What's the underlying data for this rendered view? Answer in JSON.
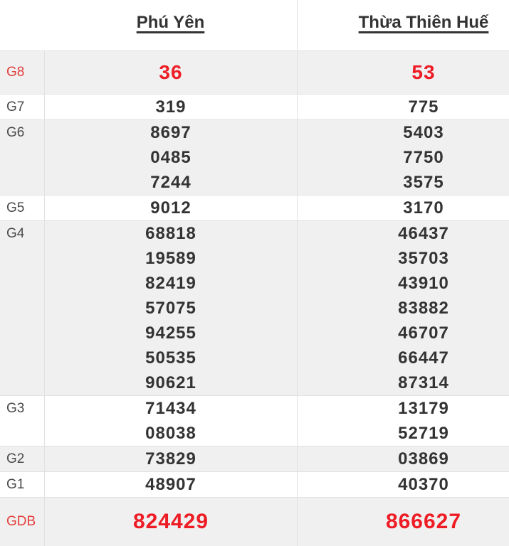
{
  "header": {
    "col1": "Phú Yên",
    "col2": "Thừa Thiên Huế"
  },
  "prizes": {
    "rows": [
      {
        "label": "G8",
        "style": "big",
        "red_label": true,
        "red_values": true,
        "values1": [
          "36"
        ],
        "values2": [
          "53"
        ]
      },
      {
        "label": "G7",
        "style": "normal",
        "red_label": false,
        "red_values": false,
        "values1": [
          "319"
        ],
        "values2": [
          "775"
        ]
      },
      {
        "label": "G6",
        "style": "normal",
        "red_label": false,
        "red_values": false,
        "values1": [
          "8697",
          "0485",
          "7244"
        ],
        "values2": [
          "5403",
          "7750",
          "3575"
        ]
      },
      {
        "label": "G5",
        "style": "normal",
        "red_label": false,
        "red_values": false,
        "values1": [
          "9012"
        ],
        "values2": [
          "3170"
        ]
      },
      {
        "label": "G4",
        "style": "normal",
        "red_label": false,
        "red_values": false,
        "values1": [
          "68818",
          "19589",
          "82419",
          "57075",
          "94255",
          "50535",
          "90621"
        ],
        "values2": [
          "46437",
          "35703",
          "43910",
          "83882",
          "46707",
          "66447",
          "87314"
        ]
      },
      {
        "label": "G3",
        "style": "normal",
        "red_label": false,
        "red_values": false,
        "values1": [
          "71434",
          "08038"
        ],
        "values2": [
          "13179",
          "52719"
        ]
      },
      {
        "label": "G2",
        "style": "normal",
        "red_label": false,
        "red_values": false,
        "values1": [
          "73829"
        ],
        "values2": [
          "03869"
        ]
      },
      {
        "label": "G1",
        "style": "normal",
        "red_label": false,
        "red_values": false,
        "values1": [
          "48907"
        ],
        "values2": [
          "40370"
        ]
      },
      {
        "label": "GDB",
        "style": "jackpot",
        "red_label": true,
        "red_values": true,
        "values1": [
          "824429"
        ],
        "values2": [
          "866627"
        ]
      }
    ]
  },
  "colors": {
    "value_red": "#ee1c25",
    "label_red": "#e2403d",
    "value_dark": "#333333",
    "label_gray": "#4a4a4a",
    "row_alt_bg": "#f0f0f0",
    "border": "#e1e1e1"
  }
}
